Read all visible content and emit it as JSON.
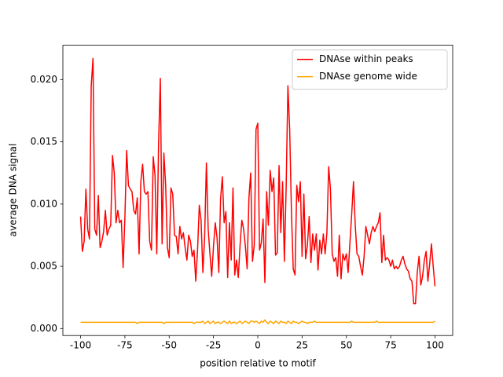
{
  "chart_data": {
    "type": "line",
    "xlabel": "position relative to motif",
    "ylabel": "average DNA signal",
    "x": [
      -100,
      -99,
      -98,
      -97,
      -96,
      -95,
      -94,
      -93,
      -92,
      -91,
      -90,
      -89,
      -88,
      -87,
      -86,
      -85,
      -84,
      -83,
      -82,
      -81,
      -80,
      -79,
      -78,
      -77,
      -76,
      -75,
      -74,
      -73,
      -72,
      -71,
      -70,
      -69,
      -68,
      -67,
      -66,
      -65,
      -64,
      -63,
      -62,
      -61,
      -60,
      -59,
      -58,
      -57,
      -56,
      -55,
      -54,
      -53,
      -52,
      -51,
      -50,
      -49,
      -48,
      -47,
      -46,
      -45,
      -44,
      -43,
      -42,
      -41,
      -40,
      -39,
      -38,
      -37,
      -36,
      -35,
      -34,
      -33,
      -32,
      -31,
      -30,
      -29,
      -28,
      -27,
      -26,
      -25,
      -24,
      -23,
      -22,
      -21,
      -20,
      -19,
      -18,
      -17,
      -16,
      -15,
      -14,
      -13,
      -12,
      -11,
      -10,
      -9,
      -8,
      -7,
      -6,
      -5,
      -4,
      -3,
      -2,
      -1,
      0,
      1,
      2,
      3,
      4,
      5,
      6,
      7,
      8,
      9,
      10,
      11,
      12,
      13,
      14,
      15,
      16,
      17,
      18,
      19,
      20,
      21,
      22,
      23,
      24,
      25,
      26,
      27,
      28,
      29,
      30,
      31,
      32,
      33,
      34,
      35,
      36,
      37,
      38,
      39,
      40,
      41,
      42,
      43,
      44,
      45,
      46,
      47,
      48,
      49,
      50,
      51,
      52,
      53,
      54,
      55,
      56,
      57,
      58,
      59,
      60,
      61,
      62,
      63,
      64,
      65,
      66,
      67,
      68,
      69,
      70,
      71,
      72,
      73,
      74,
      75,
      76,
      77,
      78,
      79,
      80,
      81,
      82,
      83,
      84,
      85,
      86,
      87,
      88,
      89,
      90,
      91,
      92,
      93,
      94,
      95,
      96,
      97,
      98,
      99,
      100
    ],
    "series": [
      {
        "name": "DNAse within peaks",
        "color": "#ff0000",
        "values": [
          0.009,
          0.0062,
          0.007,
          0.0112,
          0.008,
          0.0072,
          0.0195,
          0.0217,
          0.008,
          0.0075,
          0.0107,
          0.0065,
          0.007,
          0.0078,
          0.0095,
          0.0075,
          0.008,
          0.0083,
          0.0139,
          0.0125,
          0.0085,
          0.0095,
          0.0085,
          0.0087,
          0.0049,
          0.0089,
          0.0143,
          0.0115,
          0.0112,
          0.011,
          0.0095,
          0.0092,
          0.0105,
          0.006,
          0.0118,
          0.0132,
          0.011,
          0.0108,
          0.011,
          0.007,
          0.0063,
          0.0138,
          0.0123,
          0.006,
          0.0148,
          0.0201,
          0.0068,
          0.0141,
          0.0115,
          0.0065,
          0.0057,
          0.0113,
          0.0108,
          0.0075,
          0.0074,
          0.006,
          0.0082,
          0.0072,
          0.0077,
          0.0065,
          0.0055,
          0.0075,
          0.007,
          0.0058,
          0.0063,
          0.0038,
          0.0063,
          0.0099,
          0.0087,
          0.0045,
          0.0073,
          0.0133,
          0.008,
          0.006,
          0.0042,
          0.0066,
          0.0085,
          0.0073,
          0.0045,
          0.0104,
          0.0122,
          0.0085,
          0.0094,
          0.0041,
          0.0085,
          0.0055,
          0.0113,
          0.0043,
          0.0055,
          0.0041,
          0.0067,
          0.0087,
          0.008,
          0.0066,
          0.0048,
          0.0105,
          0.0125,
          0.0054,
          0.0067,
          0.016,
          0.0165,
          0.0063,
          0.0069,
          0.0088,
          0.0037,
          0.011,
          0.0083,
          0.0127,
          0.011,
          0.0121,
          0.0059,
          0.0061,
          0.0131,
          0.0077,
          0.0118,
          0.0054,
          0.0113,
          0.0195,
          0.016,
          0.0093,
          0.0048,
          0.0043,
          0.0115,
          0.0102,
          0.0118,
          0.0058,
          0.0108,
          0.0056,
          0.0067,
          0.009,
          0.0053,
          0.0076,
          0.0063,
          0.0076,
          0.0047,
          0.0071,
          0.006,
          0.0076,
          0.006,
          0.0077,
          0.013,
          0.0112,
          0.006,
          0.0054,
          0.0057,
          0.0042,
          0.0075,
          0.004,
          0.006,
          0.0055,
          0.006,
          0.0045,
          0.0069,
          0.0092,
          0.0118,
          0.0083,
          0.006,
          0.0058,
          0.005,
          0.0043,
          0.0058,
          0.0082,
          0.0075,
          0.0068,
          0.0077,
          0.0082,
          0.0078,
          0.0082,
          0.0085,
          0.0093,
          0.0053,
          0.0075,
          0.0055,
          0.0057,
          0.0055,
          0.005,
          0.0055,
          0.0048,
          0.005,
          0.0048,
          0.005,
          0.0055,
          0.0058,
          0.0052,
          0.0048,
          0.0046,
          0.004,
          0.0038,
          0.002,
          0.002,
          0.0045,
          0.0058,
          0.0035,
          0.0042,
          0.0055,
          0.0062,
          0.0038,
          0.0052,
          0.0068,
          0.005,
          0.0034
        ]
      },
      {
        "name": "DNAse genome wide",
        "color": "#ffa500",
        "values": [
          0.0005,
          0.0005,
          0.0005,
          0.0005,
          0.0005,
          0.0005,
          0.0005,
          0.0005,
          0.0005,
          0.0005,
          0.0005,
          0.0005,
          0.0005,
          0.0005,
          0.0005,
          0.0005,
          0.0005,
          0.0005,
          0.0005,
          0.0005,
          0.0005,
          0.0005,
          0.0005,
          0.0005,
          0.0005,
          0.0005,
          0.0005,
          0.0005,
          0.0005,
          0.0005,
          0.0005,
          0.0005,
          0.0004,
          0.0005,
          0.0005,
          0.0005,
          0.0005,
          0.0005,
          0.0005,
          0.0005,
          0.0005,
          0.0005,
          0.0005,
          0.0005,
          0.0005,
          0.0005,
          0.0005,
          0.0004,
          0.0005,
          0.0005,
          0.0005,
          0.0005,
          0.0005,
          0.0005,
          0.0005,
          0.0005,
          0.0005,
          0.0005,
          0.0005,
          0.0005,
          0.0005,
          0.0005,
          0.0005,
          0.0005,
          0.0004,
          0.0005,
          0.0005,
          0.0005,
          0.0005,
          0.0006,
          0.0004,
          0.0005,
          0.0006,
          0.0004,
          0.0005,
          0.0006,
          0.0004,
          0.0005,
          0.0005,
          0.0004,
          0.0005,
          0.0006,
          0.0005,
          0.0004,
          0.0006,
          0.0004,
          0.0005,
          0.0005,
          0.0004,
          0.0005,
          0.0006,
          0.0004,
          0.0005,
          0.0006,
          0.0005,
          0.0004,
          0.0006,
          0.0006,
          0.0005,
          0.0006,
          0.0005,
          0.0004,
          0.0006,
          0.0005,
          0.0007,
          0.0005,
          0.0004,
          0.0006,
          0.0005,
          0.0004,
          0.0006,
          0.0005,
          0.0004,
          0.0006,
          0.0005,
          0.0005,
          0.0004,
          0.0006,
          0.0005,
          0.0004,
          0.0006,
          0.0005,
          0.0005,
          0.0004,
          0.0005,
          0.0006,
          0.0005,
          0.0005,
          0.0004,
          0.0005,
          0.0005,
          0.0005,
          0.0006,
          0.0005,
          0.0005,
          0.0005,
          0.0005,
          0.0005,
          0.0005,
          0.0005,
          0.0005,
          0.0005,
          0.0005,
          0.0005,
          0.0005,
          0.0005,
          0.0005,
          0.0005,
          0.0005,
          0.0005,
          0.0005,
          0.0005,
          0.0005,
          0.0006,
          0.0005,
          0.0005,
          0.0005,
          0.0005,
          0.0005,
          0.0005,
          0.0005,
          0.0005,
          0.0005,
          0.0005,
          0.0005,
          0.0005,
          0.0005,
          0.0006,
          0.0005,
          0.0005,
          0.0005,
          0.0005,
          0.0005,
          0.0005,
          0.0005,
          0.0005,
          0.0005,
          0.0005,
          0.0005,
          0.0005,
          0.0005,
          0.0005,
          0.0005,
          0.0005,
          0.0005,
          0.0005,
          0.0005,
          0.0005,
          0.0005,
          0.0005,
          0.0005,
          0.0005,
          0.0005,
          0.0005,
          0.0005,
          0.0005,
          0.0005,
          0.0005,
          0.0005,
          0.0005,
          0.0006
        ]
      }
    ],
    "xlim": [
      -110,
      110
    ],
    "ylim": [
      -0.00056,
      0.02276
    ],
    "xticks": [
      -100,
      -75,
      -50,
      -25,
      0,
      25,
      50,
      75,
      100
    ],
    "yticks": [
      {
        "value": 0,
        "label": "0.000"
      },
      {
        "value": 0.005,
        "label": "0.005"
      },
      {
        "value": 0.01,
        "label": "0.010"
      },
      {
        "value": 0.015,
        "label": "0.015"
      },
      {
        "value": 0.02,
        "label": "0.020"
      }
    ],
    "legend": "upper right"
  }
}
